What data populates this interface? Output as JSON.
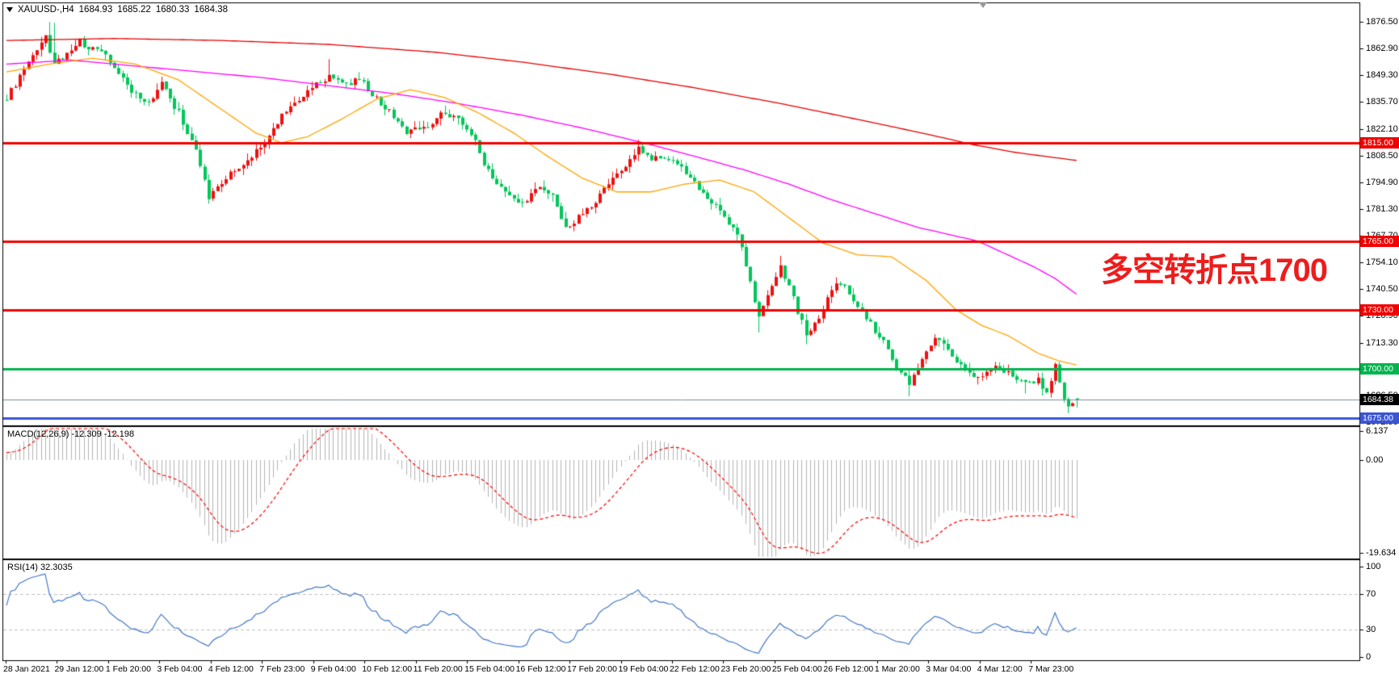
{
  "info_bar": {
    "expand_icon": "▼",
    "symbol_period": "XAUUSD-,H4",
    "open": "1684.93",
    "high": "1685.22",
    "low": "1680.33",
    "close": "1684.38"
  },
  "annotation": {
    "text": "多空转折点1700",
    "color": "#ee1c1c"
  },
  "macd_panel": {
    "label": "MACD(12,26,9) -12.309 -12.198",
    "ticks": [
      {
        "label": "6.137",
        "v": 6.137
      },
      {
        "label": "0.00",
        "v": 0
      },
      {
        "label": "-19.634",
        "v": -19.634
      }
    ]
  },
  "rsi_panel": {
    "label": "RSI(14) 32.3035",
    "ticks": [
      {
        "label": "100",
        "v": 100
      },
      {
        "label": "70",
        "v": 70
      },
      {
        "label": "30",
        "v": 30
      },
      {
        "label": "0",
        "v": 0
      }
    ]
  },
  "chart_data": {
    "type": "candlestick",
    "symbol": "XAUUSD-",
    "timeframe": "H4",
    "title": "XAUUSD-,H4",
    "last_bar_ohlc": {
      "open": 1684.93,
      "high": 1685.22,
      "low": 1680.33,
      "close": 1684.38
    },
    "current_price": 1684.38,
    "current_price_label": "1684.38",
    "bars": 250,
    "seed": 97,
    "price_ticks": [
      {
        "label": "1876.50",
        "v": 1876.5
      },
      {
        "label": "1862.90",
        "v": 1862.9
      },
      {
        "label": "1849.30",
        "v": 1849.3
      },
      {
        "label": "1835.70",
        "v": 1835.7
      },
      {
        "label": "1822.10",
        "v": 1822.1
      },
      {
        "label": "1808.50",
        "v": 1808.5
      },
      {
        "label": "1794.90",
        "v": 1794.9
      },
      {
        "label": "1781.30",
        "v": 1781.3
      },
      {
        "label": "1767.70",
        "v": 1767.7
      },
      {
        "label": "1754.10",
        "v": 1754.1
      },
      {
        "label": "1740.50",
        "v": 1740.5
      },
      {
        "label": "1726.90",
        "v": 1726.9
      },
      {
        "label": "1713.30",
        "v": 1713.3
      },
      {
        "label": "1686.50",
        "v": 1686.5
      },
      {
        "label": "1672.90",
        "v": 1672.9
      }
    ],
    "hlines": [
      {
        "price": 1815,
        "label": "1815.00",
        "color": "#f20000",
        "width": 3
      },
      {
        "price": 1765,
        "label": "1765.00",
        "color": "#f20000",
        "width": 3
      },
      {
        "price": 1730,
        "label": "1730.00",
        "color": "#f20000",
        "width": 3
      },
      {
        "price": 1700,
        "label": "1700.00",
        "color": "#00b44e",
        "width": 3
      },
      {
        "price": 1675,
        "label": "1675.00",
        "color": "#3a55d4",
        "width": 3
      }
    ],
    "current_price_line_color": "#7d8d9e",
    "candle_colors": {
      "up": "#ee1111",
      "down": "#00c65a"
    },
    "close_waypoints": [
      [
        0,
        1838
      ],
      [
        3,
        1848
      ],
      [
        6,
        1858
      ],
      [
        9,
        1869
      ],
      [
        11,
        1855
      ],
      [
        14,
        1860
      ],
      [
        17,
        1866
      ],
      [
        20,
        1862
      ],
      [
        23,
        1860
      ],
      [
        26,
        1850
      ],
      [
        29,
        1840
      ],
      [
        33,
        1836
      ],
      [
        36,
        1845
      ],
      [
        40,
        1830
      ],
      [
        44,
        1812
      ],
      [
        47,
        1788
      ],
      [
        50,
        1794
      ],
      [
        53,
        1801
      ],
      [
        57,
        1808
      ],
      [
        61,
        1818
      ],
      [
        64,
        1830
      ],
      [
        68,
        1838
      ],
      [
        72,
        1844
      ],
      [
        75,
        1849
      ],
      [
        78,
        1845
      ],
      [
        82,
        1847
      ],
      [
        86,
        1838
      ],
      [
        90,
        1828
      ],
      [
        93,
        1820
      ],
      [
        97,
        1823
      ],
      [
        101,
        1829
      ],
      [
        105,
        1827
      ],
      [
        108,
        1820
      ],
      [
        112,
        1800
      ],
      [
        116,
        1790
      ],
      [
        120,
        1783
      ],
      [
        124,
        1793
      ],
      [
        127,
        1787
      ],
      [
        130,
        1772
      ],
      [
        133,
        1777
      ],
      [
        137,
        1786
      ],
      [
        141,
        1796
      ],
      [
        144,
        1804
      ],
      [
        147,
        1812
      ],
      [
        150,
        1807
      ],
      [
        154,
        1806
      ],
      [
        158,
        1800
      ],
      [
        162,
        1790
      ],
      [
        166,
        1780
      ],
      [
        170,
        1769
      ],
      [
        173,
        1746
      ],
      [
        175,
        1725
      ],
      [
        178,
        1742
      ],
      [
        180,
        1753
      ],
      [
        183,
        1736
      ],
      [
        186,
        1717
      ],
      [
        189,
        1727
      ],
      [
        192,
        1740
      ],
      [
        194,
        1744
      ],
      [
        198,
        1733
      ],
      [
        201,
        1723
      ],
      [
        204,
        1713
      ],
      [
        207,
        1701
      ],
      [
        210,
        1693
      ],
      [
        213,
        1704
      ],
      [
        216,
        1715
      ],
      [
        219,
        1711
      ],
      [
        222,
        1701
      ],
      [
        225,
        1695
      ],
      [
        228,
        1699
      ],
      [
        231,
        1701
      ],
      [
        234,
        1696
      ],
      [
        237,
        1692
      ],
      [
        240,
        1695
      ],
      [
        242,
        1688
      ],
      [
        244,
        1701
      ],
      [
        246,
        1685
      ],
      [
        247,
        1681
      ],
      [
        248,
        1683
      ],
      [
        249,
        1684.38
      ]
    ],
    "high_overrides": [
      [
        10,
        1876.4
      ],
      [
        11,
        1876.0
      ],
      [
        75,
        1857.5
      ],
      [
        147,
        1816.5
      ],
      [
        180,
        1757.5
      ],
      [
        216,
        1717.0
      ]
    ],
    "low_overrides": [
      [
        47,
        1784.0
      ],
      [
        48,
        1786.0
      ],
      [
        175,
        1718.5
      ],
      [
        186,
        1712.5
      ],
      [
        210,
        1686.0
      ],
      [
        237,
        1687.5
      ],
      [
        247,
        1677.5
      ]
    ],
    "ma_overlays": [
      {
        "name": "slow-ma",
        "color": "#e60000",
        "waypoints": [
          [
            0,
            1867
          ],
          [
            25,
            1868
          ],
          [
            50,
            1867
          ],
          [
            75,
            1865
          ],
          [
            100,
            1861
          ],
          [
            120,
            1856
          ],
          [
            140,
            1850
          ],
          [
            160,
            1843
          ],
          [
            180,
            1835
          ],
          [
            200,
            1826
          ],
          [
            215,
            1819
          ],
          [
            225,
            1814
          ],
          [
            235,
            1810
          ],
          [
            249,
            1806
          ]
        ]
      },
      {
        "name": "mid-ma",
        "color": "#ff00ff",
        "waypoints": [
          [
            0,
            1855
          ],
          [
            15,
            1857
          ],
          [
            30,
            1854
          ],
          [
            45,
            1851
          ],
          [
            60,
            1848
          ],
          [
            75,
            1844
          ],
          [
            90,
            1840
          ],
          [
            105,
            1835
          ],
          [
            120,
            1829
          ],
          [
            135,
            1822
          ],
          [
            150,
            1814
          ],
          [
            162,
            1807
          ],
          [
            172,
            1801
          ],
          [
            182,
            1794
          ],
          [
            192,
            1786
          ],
          [
            202,
            1779
          ],
          [
            212,
            1772
          ],
          [
            220,
            1768
          ],
          [
            226,
            1765
          ],
          [
            233,
            1758
          ],
          [
            239,
            1752
          ],
          [
            244,
            1746
          ],
          [
            249,
            1738
          ]
        ]
      },
      {
        "name": "fast-ma",
        "color": "#ffa500",
        "waypoints": [
          [
            0,
            1851
          ],
          [
            10,
            1855
          ],
          [
            20,
            1858
          ],
          [
            30,
            1855
          ],
          [
            40,
            1847
          ],
          [
            50,
            1832
          ],
          [
            58,
            1820
          ],
          [
            64,
            1815
          ],
          [
            70,
            1818
          ],
          [
            78,
            1827
          ],
          [
            86,
            1837
          ],
          [
            94,
            1842
          ],
          [
            102,
            1838
          ],
          [
            110,
            1830
          ],
          [
            118,
            1820
          ],
          [
            126,
            1808
          ],
          [
            134,
            1797
          ],
          [
            142,
            1790
          ],
          [
            150,
            1790
          ],
          [
            158,
            1794
          ],
          [
            166,
            1796
          ],
          [
            174,
            1790
          ],
          [
            182,
            1777
          ],
          [
            190,
            1764
          ],
          [
            198,
            1758
          ],
          [
            206,
            1757
          ],
          [
            214,
            1745
          ],
          [
            221,
            1730
          ],
          [
            227,
            1722
          ],
          [
            233,
            1717
          ],
          [
            240,
            1708
          ],
          [
            245,
            1704
          ],
          [
            249,
            1702
          ]
        ]
      }
    ],
    "macd": {
      "fast": 12,
      "slow": 26,
      "signal": 9,
      "current_macd": -12.309,
      "current_signal": -12.198,
      "panel_min": -19.634,
      "panel_max": 6.137,
      "hist_color": "#b4b4b4",
      "signal_color": "#ff0000"
    },
    "rsi": {
      "period": 14,
      "current": 32.3035,
      "line_color": "#4579c6",
      "levels": [
        70,
        30
      ]
    },
    "time_labels": [
      "28 Jan 2021",
      "29 Jan 12:00",
      "1 Feb 20:00",
      "3 Feb 04:00",
      "4 Feb 12:00",
      "7 Feb 23:00",
      "9 Feb 04:00",
      "10 Feb 12:00",
      "11 Feb 20:00",
      "15 Feb 04:00",
      "16 Feb 12:00",
      "17 Feb 20:00",
      "19 Feb 04:00",
      "22 Feb 12:00",
      "23 Feb 20:00",
      "25 Feb 04:00",
      "26 Feb 12:00",
      "1 Mar 20:00",
      "3 Mar 04:00",
      "4 Mar 12:00",
      "7 Mar 23:00"
    ]
  }
}
